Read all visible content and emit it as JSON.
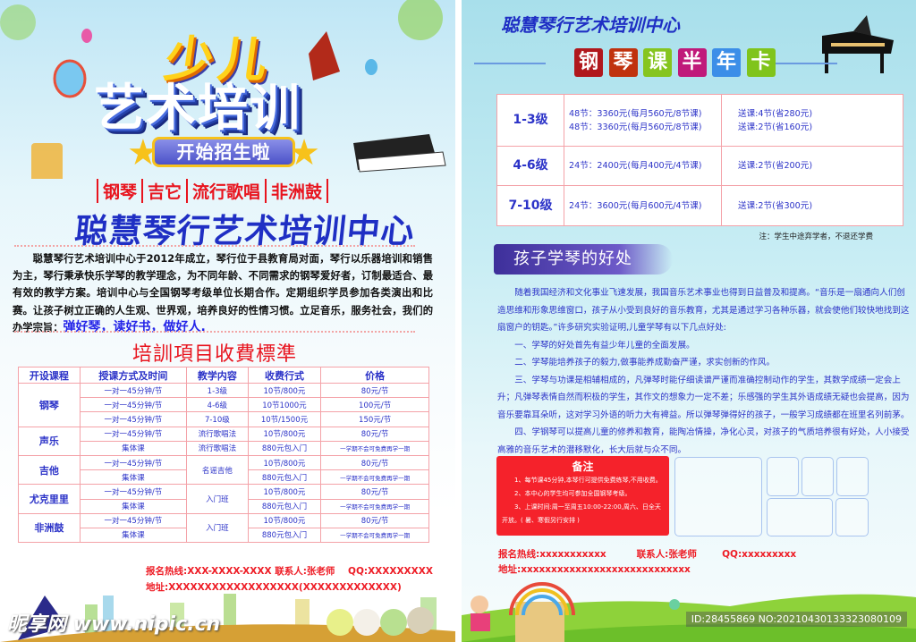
{
  "left": {
    "headline_top": "少儿",
    "headline_main": "艺术培训",
    "banner": "开始招生啦",
    "subjects": [
      "钢琴",
      "吉它",
      "流行歌唱",
      "非洲鼓"
    ],
    "org_title": "聪慧琴行艺术培训中心",
    "intro": "聪慧琴行艺术培训中心于2012年成立，琴行位于县教育局对面，琴行以乐器培训和销售为主，琴行秉承快乐学琴的教学理念，为不同年龄、不同需求的钢琴爱好者，订制最适合、最有效的教学方案。培训中心与全国钢琴考级单位长期合作。定期组织学员参加各类演出和比赛。让孩子树立正确的人生观、世界观，培养良好的性情习惯。立足音乐，服务社会，我们的办学宗旨：",
    "motto": "弹好琴，读好书，做好人.",
    "fee_title": "培訓項目收費標準",
    "fee_table": {
      "headers": [
        "开设课程",
        "授课方式及时间",
        "教学内容",
        "收费行式",
        "价格"
      ],
      "courses": [
        {
          "name": "钢琴",
          "rows": [
            {
              "mode": "一对一45分钟/节",
              "content": "1-3级",
              "fee": "10节/800元",
              "price": "80元/节"
            },
            {
              "mode": "一对一45分钟/节",
              "content": "4-6级",
              "fee": "10节1000元",
              "price": "100元/节"
            },
            {
              "mode": "一对一45分钟/节",
              "content": "7-10级",
              "fee": "10节/1500元",
              "price": "150元/节"
            }
          ]
        },
        {
          "name": "声乐",
          "rows": [
            {
              "mode": "一对一45分钟/节",
              "content": "流行歌唱法",
              "fee": "10节/800元",
              "price": "80元/节"
            },
            {
              "mode": "集体课",
              "content": "流行歌唱法",
              "fee": "880元包入门",
              "price": "一学期不会可免费再学一期"
            }
          ]
        },
        {
          "name": "吉他",
          "content": "名谣吉他",
          "rows": [
            {
              "mode": "一对一45分钟/节",
              "fee": "10节/800元",
              "price": "80元/节"
            },
            {
              "mode": "集体课",
              "fee": "880元包入门",
              "price": "一学期不会可免费再学一期"
            }
          ]
        },
        {
          "name": "尤克里里",
          "content": "入门班",
          "rows": [
            {
              "mode": "一对一45分钟/节",
              "fee": "10节/800元",
              "price": "80元/节"
            },
            {
              "mode": "集体课",
              "fee": "880元包入门",
              "price": "一学期不会可免费再学一期"
            }
          ]
        },
        {
          "name": "非洲鼓",
          "content": "入门班",
          "rows": [
            {
              "mode": "一对一45分钟/节",
              "fee": "10节/800元",
              "price": "80元/节"
            },
            {
              "mode": "集体课",
              "fee": "880元包入门",
              "price": "一学期不会可免费再学一期"
            }
          ]
        }
      ]
    },
    "contact_line": "报名热线:XXX-XXXX-XXXX 联系人:张老师",
    "qq": "QQ:XXXXXXXXX",
    "address": "地址:XXXXXXXXXXXXXXXXXX(XXXXXXXXXXXXX)",
    "watermark": "昵享网 www.nipic.cn"
  },
  "right": {
    "org_title": "聪慧琴行艺术培训中心",
    "card_chars": [
      {
        "char": "钢",
        "color": "#b0171c"
      },
      {
        "char": "琴",
        "color": "#c0320e"
      },
      {
        "char": "课",
        "color": "#86c51f"
      },
      {
        "char": "半",
        "color": "#c0197a"
      },
      {
        "char": "年",
        "color": "#3c8ee8"
      },
      {
        "char": "卡",
        "color": "#80c41c"
      }
    ],
    "price_table": [
      {
        "level": "1-3级",
        "prices": [
          "48节：3360元(每月560元/8节课)",
          "48节：3360元(每月560元/8节课)"
        ],
        "gifts": [
          "送课:4节(省280元)",
          "送课:2节(省160元)"
        ]
      },
      {
        "level": "4-6级",
        "prices": [
          "24节：2400元(每月400元/4节课)"
        ],
        "gifts": [
          "送课:2节(省200元)"
        ]
      },
      {
        "level": "7-10级",
        "prices": [
          "24节：3600元(每月600元/4节课)"
        ],
        "gifts": [
          "送课:2节(省300元)"
        ]
      }
    ],
    "price_note": "注：学生中途弃学者，不退还学费",
    "benefits_title": "孩子学琴的好处",
    "benefits": [
      "随着我国经济和文化事业飞速发展，我国音乐艺术事业也得到日益普及和提高。“音乐是一扇通向人们创造思维和形象思维窗口，孩子从小受到良好的音乐教育，尤其是通过学习各种乐器，就会使他们较快地找到这扇窗户的钥匙。”许多研究实验证明,儿童学琴有以下几点好处:",
      "一、学琴的好处首先有益少年儿童的全面发展。",
      "二、学琴能培养孩子的毅力,做事能养成勤奋严谨，求实创新的作风。",
      "三、学琴与功课是相辅相成的，凡弹琴时能仔细读谱严谨而准确控制动作的学生，其数学成绩一定会上升；凡弹琴表情自然而积极的学生，其作文的想象力一定不差；乐感强的学生其外语成绩无疑也会提高，因为音乐要靠耳朵听，这对学习外语的听力大有裨益。所以弹琴弹得好的孩子，一般学习成绩都在班里名列前茅。",
      "四、学钢琴可以提高儿童的修养和教育，能陶冶情操，净化心灵，对孩子的气质培养很有好处，人小接受高雅的音乐艺术的潜移默化，长大后就与众不同。"
    ],
    "memo": {
      "title": "备注",
      "items": [
        "1、每节课45分钟,本琴行可提供免费练琴,不用收费。",
        "2、本中心的学生均可参加全国钢琴考级。",
        "3、上课时间:周一至周五10:00-22:00,周六、日全天开放。( 暑、寒假另行安排 )"
      ]
    },
    "hotline": "报名热线:xxxxxxxxxxx",
    "contact": "联系人:张老师",
    "qq": "QQ:xxxxxxxxx",
    "address": "地址:xxxxxxxxxxxxxxxxxxxxxxxxxxxx",
    "image_id": "ID:28455869 NO:20210430133323080109"
  }
}
